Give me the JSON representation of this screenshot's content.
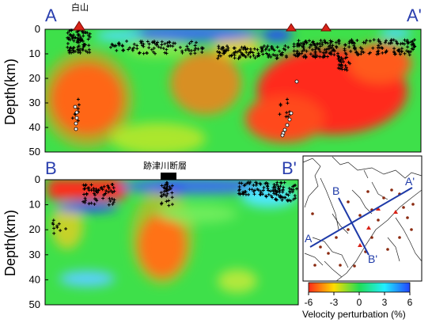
{
  "chart_data": [
    {
      "type": "heatmap",
      "title": "",
      "profile_start": "A",
      "profile_end": "A'",
      "ylabel": "Depth(km)",
      "ylim": [
        0,
        50
      ],
      "yticks": [
        "0",
        "10",
        "20",
        "30",
        "40",
        "50"
      ],
      "volcano_label": "白山",
      "volcano_count": 3,
      "color_range": [
        -6,
        6
      ]
    },
    {
      "type": "heatmap",
      "title": "",
      "profile_start": "B",
      "profile_end": "B'",
      "ylabel": "Depth(km)",
      "ylim": [
        0,
        50
      ],
      "yticks": [
        "0",
        "10",
        "20",
        "30",
        "40",
        "50"
      ],
      "fault_label": "跡津川断層",
      "color_range": [
        -6,
        6
      ]
    }
  ],
  "inset_map": {
    "labels": [
      "A",
      "A'",
      "B",
      "B'"
    ]
  },
  "colorbar": {
    "ticks": [
      "-6",
      "-3",
      "0",
      "3",
      "6"
    ],
    "label": "Velocity perturbation (%)",
    "colors": [
      "#ff2a1a",
      "#ffdd00",
      "#22dd55",
      "#22eeff",
      "#2244ff"
    ]
  }
}
